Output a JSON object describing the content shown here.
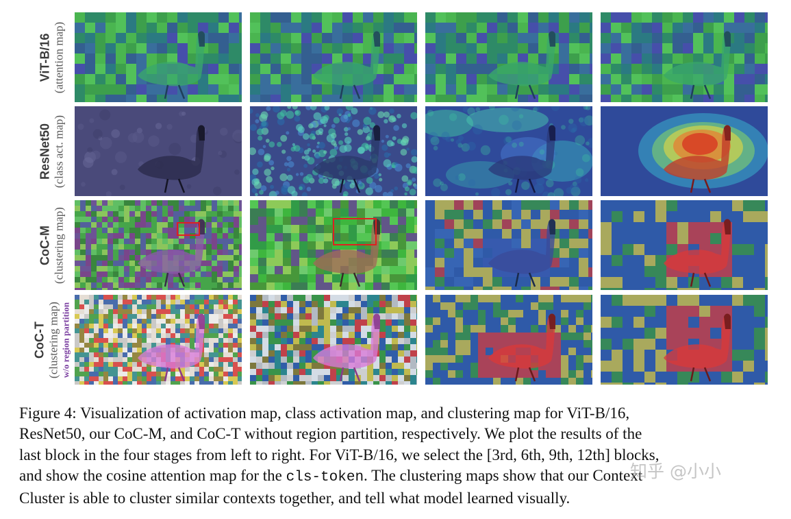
{
  "figure": {
    "rows": [
      {
        "key": "vit",
        "model": "ViT-B/16",
        "desc": "(attention map)",
        "sub": ""
      },
      {
        "key": "resnet",
        "model": "ResNet50",
        "desc": "(class act. map)",
        "sub": ""
      },
      {
        "key": "cocm",
        "model": "CoC-M",
        "desc": "(clustering map)",
        "sub": ""
      },
      {
        "key": "coct",
        "model": "CoC-T",
        "desc": "(clustering map)",
        "sub": "w/o region partition"
      }
    ],
    "columns": 4,
    "content": "goose walking on grass"
  },
  "caption": {
    "line1": "Figure 4: Visualization of activation map, class activation map, and clustering map for ViT-B/16,",
    "line2": "ResNet50, our CoC-M, and CoC-T without region partition, respectively. We plot the results of the",
    "line3": "last block in the four stages from left to right. For ViT-B/16, we select the [3rd, 6th, 9th, 12th] blocks,",
    "line4_a": "and show the cosine attention map for the ",
    "line4_code": "cls-token",
    "line4_b": ". The clustering maps show that our Context",
    "line5": "Cluster is able to cluster similar contexts together, and tell what model learned visually."
  },
  "watermark": "知乎 @小小"
}
